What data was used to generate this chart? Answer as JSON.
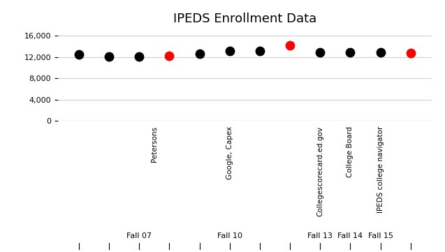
{
  "title": "IPEDS Enrollment Data",
  "black_points": {
    "x": [
      1,
      2,
      3,
      5,
      6,
      7,
      9,
      10,
      11
    ],
    "y": [
      12400,
      12100,
      12050,
      12600,
      13100,
      13150,
      12850,
      12900,
      12850
    ]
  },
  "red_points": {
    "x": [
      4,
      8,
      12
    ],
    "y": [
      12200,
      14200,
      12750
    ]
  },
  "ylim": [
    0,
    17000
  ],
  "yticks": [
    0,
    4000,
    8000,
    12000,
    16000
  ],
  "ytick_labels": [
    "0",
    "4,000",
    "8,000",
    "12,000",
    "16,000"
  ],
  "xlim": [
    0.3,
    12.7
  ],
  "background_color": "#ffffff",
  "grid_color": "#d0d0d0",
  "black_dot_color": "#000000",
  "red_dot_color": "#ff0000",
  "dot_size": 80,
  "title_fontsize": 13,
  "source_labels": [
    {
      "x": 3.5,
      "text": "Petersons"
    },
    {
      "x": 6,
      "text": "Google, Capex"
    },
    {
      "x": 9,
      "text": "Collegescorecard.ed.gov"
    },
    {
      "x": 10,
      "text": "College Board"
    },
    {
      "x": 11,
      "text": "IPEDS college navigator"
    }
  ],
  "fall_labels": [
    {
      "x": 3,
      "text": "Fall 07"
    },
    {
      "x": 6,
      "text": "Fall 10"
    },
    {
      "x": 9,
      "text": "Fall 13"
    },
    {
      "x": 10,
      "text": "Fall 14"
    },
    {
      "x": 11,
      "text": "Fall 15"
    }
  ],
  "tick_x_positions": [
    1,
    2,
    3,
    4,
    5,
    6,
    7,
    8,
    9,
    10,
    11,
    12
  ]
}
